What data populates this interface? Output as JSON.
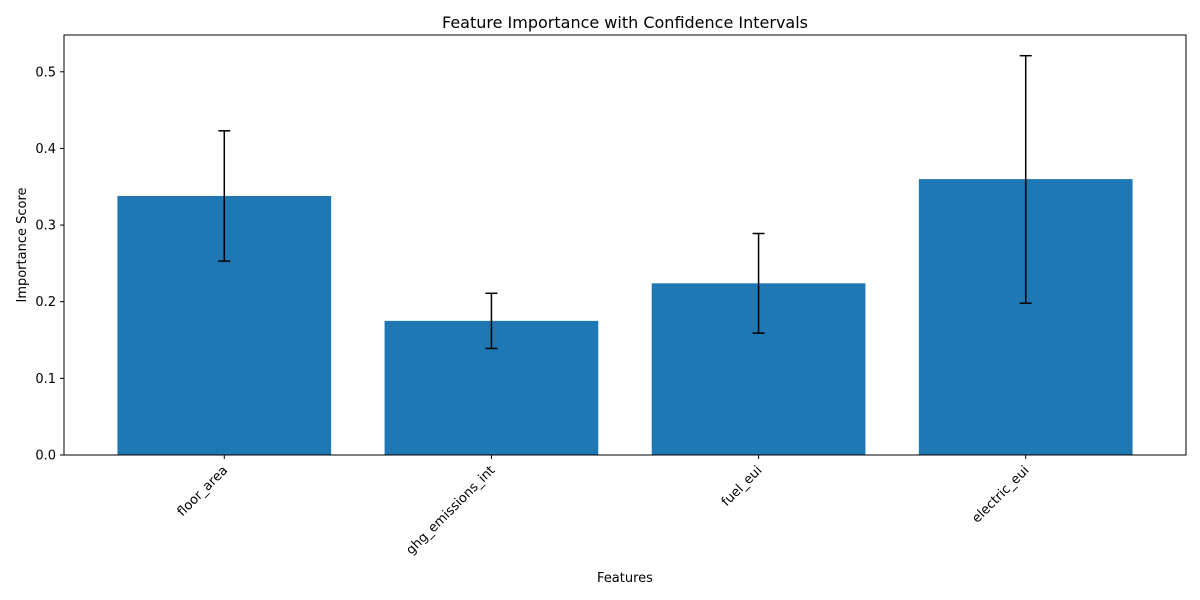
{
  "chart_data": {
    "type": "bar",
    "title": "Feature Importance with Confidence Intervals",
    "xlabel": "Features",
    "ylabel": "Importance Score",
    "categories": [
      "floor_area",
      "ghg_emissions_int",
      "fuel_eui",
      "electric_eui"
    ],
    "values": [
      0.338,
      0.175,
      0.224,
      0.36
    ],
    "error_low": [
      0.253,
      0.139,
      0.159,
      0.198
    ],
    "error_high": [
      0.423,
      0.211,
      0.289,
      0.521
    ],
    "ylim": [
      0,
      0.548
    ],
    "yticks": [
      0.0,
      0.1,
      0.2,
      0.3,
      0.4,
      0.5
    ],
    "ytick_labels": [
      "0.0",
      "0.1",
      "0.2",
      "0.3",
      "0.4",
      "0.5"
    ],
    "bar_color": "#1f77b4",
    "error_color": "#000000",
    "grid": false,
    "xtick_rotation": 45
  }
}
